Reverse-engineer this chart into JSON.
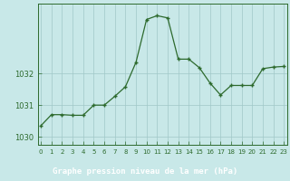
{
  "x": [
    0,
    1,
    2,
    3,
    4,
    5,
    6,
    7,
    8,
    9,
    10,
    11,
    12,
    13,
    14,
    15,
    16,
    17,
    18,
    19,
    20,
    21,
    22,
    23
  ],
  "y": [
    1030.35,
    1030.7,
    1030.7,
    1030.68,
    1030.68,
    1031.0,
    1031.0,
    1031.28,
    1031.58,
    1032.35,
    1033.7,
    1033.82,
    1033.75,
    1032.45,
    1032.45,
    1032.18,
    1031.7,
    1031.32,
    1031.62,
    1031.62,
    1031.62,
    1032.15,
    1032.2,
    1032.22
  ],
  "line_color": "#2d6a2d",
  "marker": "+",
  "marker_color": "#2d6a2d",
  "bg_color": "#c8e8e8",
  "plot_bg_color": "#c8e8e8",
  "grid_color": "#a0c8c8",
  "xlabel": "Graphe pression niveau de la mer (hPa)",
  "xlabel_color": "#2d6a2d",
  "tick_color": "#2d6a2d",
  "yticks": [
    1030,
    1031,
    1032
  ],
  "ylim": [
    1029.75,
    1034.2
  ],
  "xlim": [
    -0.3,
    23.3
  ],
  "bottom_bar_color": "#2d6a2d",
  "bottom_bar_height": 0.045,
  "xlabel_fontsize": 6.5,
  "ylabel_fontsize": 6,
  "xtick_fontsize": 5,
  "ytick_fontsize": 6
}
